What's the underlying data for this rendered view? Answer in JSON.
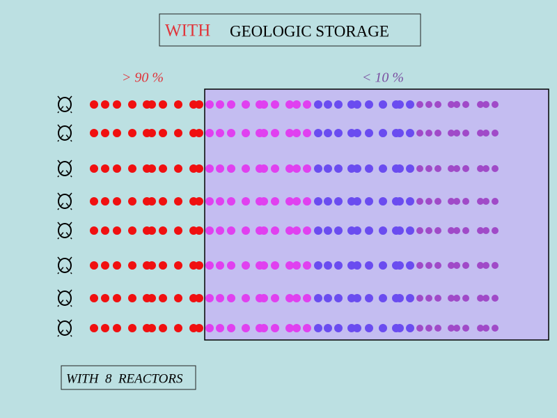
{
  "title": {
    "highlight": "WITH",
    "text": "GEOLOGIC STORAGE"
  },
  "labels": {
    "left": "> 90 %",
    "right": "< 10 %"
  },
  "footer": "WITH  8  REACTORS"
}
